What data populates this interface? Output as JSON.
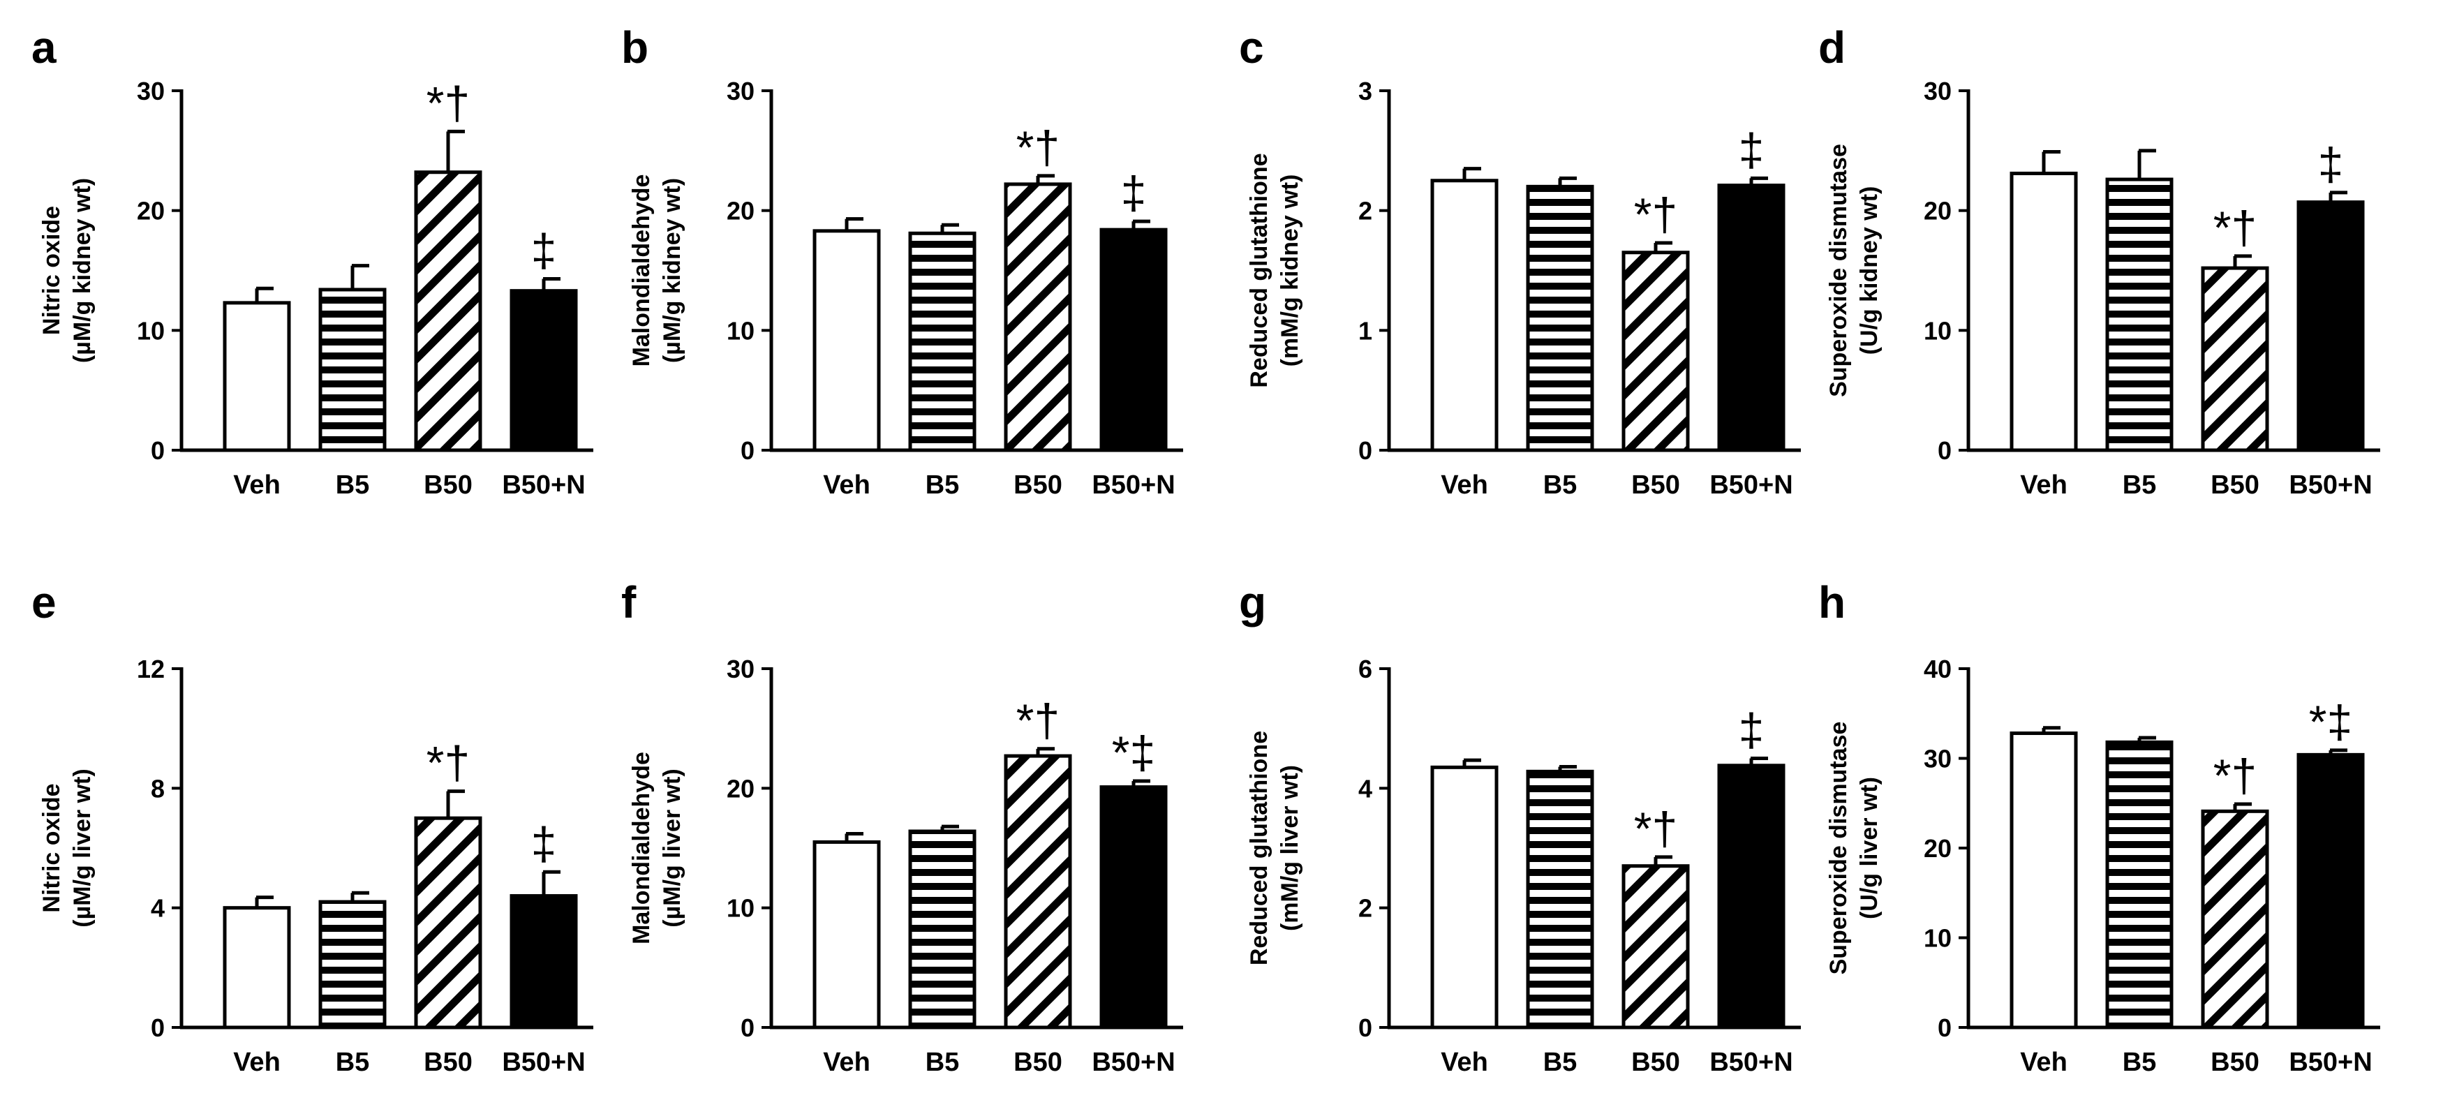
{
  "chart_data": [
    {
      "panel": "a",
      "type": "bar",
      "categories": [
        "Veh",
        "B5",
        "B50",
        "B50+N"
      ],
      "values": [
        12.3,
        13.4,
        23.2,
        13.3
      ],
      "errors": [
        1.2,
        2.0,
        3.4,
        1.0
      ],
      "significance": [
        "",
        "",
        "*†",
        "‡"
      ],
      "ylabel": [
        "Nitric oxide",
        "(µM/g kidney wt)"
      ],
      "ylim": [
        0,
        30
      ],
      "yticks": [
        "0",
        "10",
        "20",
        "30"
      ],
      "grid": false
    },
    {
      "panel": "b",
      "type": "bar",
      "categories": [
        "Veh",
        "B5",
        "B50",
        "B50+N"
      ],
      "values": [
        18.3,
        18.1,
        22.2,
        18.4
      ],
      "errors": [
        1.0,
        0.7,
        0.7,
        0.7
      ],
      "significance": [
        "",
        "",
        "*†",
        "‡"
      ],
      "ylabel": [
        "Malondialdehyde",
        "(µM/g kidney wt)"
      ],
      "ylim": [
        0,
        30
      ],
      "yticks": [
        "0",
        "10",
        "20",
        "30"
      ],
      "grid": false
    },
    {
      "panel": "c",
      "type": "bar",
      "categories": [
        "Veh",
        "B5",
        "B50",
        "B50+N"
      ],
      "values": [
        2.25,
        2.2,
        1.65,
        2.21
      ],
      "errors": [
        0.1,
        0.07,
        0.08,
        0.06
      ],
      "significance": [
        "",
        "",
        "*†",
        "‡"
      ],
      "ylabel": [
        "Reduced glutathione",
        "(mM/g kidney wt)"
      ],
      "ylim": [
        0,
        3
      ],
      "yticks": [
        "0",
        "1",
        "2",
        "3"
      ],
      "grid": false
    },
    {
      "panel": "d",
      "type": "bar",
      "categories": [
        "Veh",
        "B5",
        "B50",
        "B50+N"
      ],
      "values": [
        23.1,
        22.6,
        15.2,
        20.7
      ],
      "errors": [
        1.8,
        2.4,
        1.0,
        0.8
      ],
      "significance": [
        "",
        "",
        "*†",
        "‡"
      ],
      "ylabel": [
        "Superoxide dismutase",
        "(U/g kidney wt)"
      ],
      "ylim": [
        0,
        30
      ],
      "yticks": [
        "0",
        "10",
        "20",
        "30"
      ],
      "grid": false
    },
    {
      "panel": "e",
      "type": "bar",
      "categories": [
        "Veh",
        "B5",
        "B50",
        "B50+N"
      ],
      "values": [
        4.0,
        4.2,
        7.0,
        4.4
      ],
      "errors": [
        0.35,
        0.3,
        0.9,
        0.8
      ],
      "significance": [
        "",
        "",
        "*†",
        "‡"
      ],
      "ylabel": [
        "Nitric oxide",
        "(µM/g liver wt)"
      ],
      "ylim": [
        0,
        12
      ],
      "yticks": [
        "0",
        "4",
        "8",
        "12"
      ],
      "grid": false
    },
    {
      "panel": "f",
      "type": "bar",
      "categories": [
        "Veh",
        "B5",
        "B50",
        "B50+N"
      ],
      "values": [
        15.5,
        16.4,
        22.7,
        20.1
      ],
      "errors": [
        0.7,
        0.4,
        0.6,
        0.5
      ],
      "significance": [
        "",
        "",
        "*†",
        "*‡"
      ],
      "ylabel": [
        "Malondialdehyde",
        "(µM/g liver wt)"
      ],
      "ylim": [
        0,
        30
      ],
      "yticks": [
        "0",
        "10",
        "20",
        "30"
      ],
      "grid": false
    },
    {
      "panel": "g",
      "type": "bar",
      "categories": [
        "Veh",
        "B5",
        "B50",
        "B50+N"
      ],
      "values": [
        4.35,
        4.28,
        2.7,
        4.38
      ],
      "errors": [
        0.12,
        0.08,
        0.15,
        0.12
      ],
      "significance": [
        "",
        "",
        "*†",
        "‡"
      ],
      "ylabel": [
        "Reduced glutathione",
        "(mM/g liver wt)"
      ],
      "ylim": [
        0,
        6
      ],
      "yticks": [
        "0",
        "2",
        "4",
        "6"
      ],
      "grid": false
    },
    {
      "panel": "h",
      "type": "bar",
      "categories": [
        "Veh",
        "B5",
        "B50",
        "B50+N"
      ],
      "values": [
        32.8,
        31.8,
        24.1,
        30.4
      ],
      "errors": [
        0.6,
        0.5,
        0.8,
        0.5
      ],
      "significance": [
        "",
        "",
        "*†",
        "*‡"
      ],
      "ylabel": [
        "Superoxide dismutase",
        "(U/g liver wt)"
      ],
      "ylim": [
        0,
        40
      ],
      "yticks": [
        "0",
        "10",
        "20",
        "30",
        "40"
      ],
      "grid": false
    }
  ],
  "bar_styles": [
    "open",
    "horizontal-stripes",
    "diagonal-hatch",
    "solid"
  ],
  "colors": {
    "ink": "#000000",
    "paper": "#ffffff"
  }
}
